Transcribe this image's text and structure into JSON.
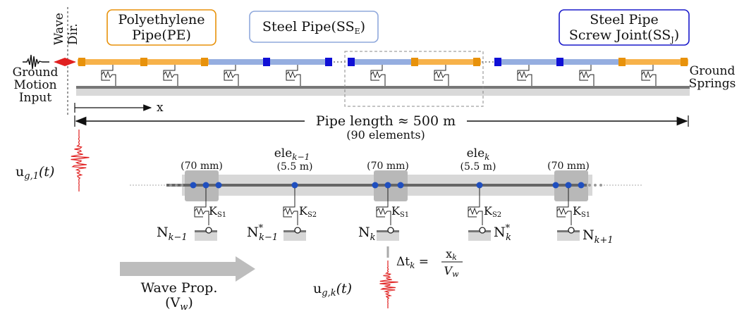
{
  "top": {
    "wave_dir": [
      "Wave",
      "Dir."
    ],
    "ground_motion_input": [
      "Ground",
      "Motion",
      "Input"
    ],
    "ground_springs": [
      "Ground",
      "Springs"
    ],
    "x_label": "x",
    "pipe_length": "Pipe length ≈ 500 m",
    "elements_note": "(90 elements)",
    "legend": {
      "pe": {
        "lines": [
          "Polyethylene",
          "Pipe(PE)"
        ],
        "color": "#e8920b",
        "fill": "#f7b24a"
      },
      "sse": {
        "base": "Steel Pipe(SS",
        "sub": "E",
        "close": ")",
        "color": "#8fa8dc",
        "fill": "#95aee0"
      },
      "ssj": {
        "line1": "Steel Pipe",
        "base": "Screw Joint(SS",
        "sub": "J",
        "close": ")",
        "color": "#1a1acb"
      }
    }
  },
  "detail": {
    "ug1": {
      "base": "u",
      "sub": "g,1",
      "arg": "(t)"
    },
    "ugk": {
      "base": "u",
      "sub": "g,k",
      "arg": "(t)"
    },
    "joint_size": "(70 mm)",
    "ele_km1": {
      "base": "ele",
      "sub": "k−1",
      "len": "(5.5 m)"
    },
    "ele_k": {
      "base": "ele",
      "sub": "k",
      "len": "(5.5 m)"
    },
    "springs": {
      "ks1": {
        "base": "K",
        "sub": "S1"
      },
      "ks2": {
        "base": "K",
        "sub": "S2"
      }
    },
    "nodes": {
      "nkm1": {
        "base": "N",
        "sub": "k−1"
      },
      "nkm1s": {
        "base": "N",
        "sup": "*",
        "sub": "k−1"
      },
      "nk": {
        "base": "N",
        "sub": "k"
      },
      "nks": {
        "base": "N",
        "sup": "*",
        "sub": "k"
      },
      "nkp1": {
        "base": "N",
        "sub": "k+1"
      }
    },
    "delta": {
      "lhs": "Δt",
      "lhs_sub": "k",
      "eq": " = ",
      "num": "x",
      "num_sub": "k",
      "den": "V",
      "den_sub": "w"
    },
    "wave_prop": {
      "line1": "Wave Prop.",
      "line2_base": "(V",
      "line2_sub": "w",
      "line2_close": ")"
    }
  },
  "colors": {
    "pipe_pe": "#f7b24a",
    "pipe_steel": "#95aee0",
    "joint_pe": "#e8920b",
    "joint_ssj": "#1010d6",
    "node_blue": "#1f4fbf",
    "signal_red": "#e02020",
    "ground_dark": "#777777",
    "ground_light": "#d6d6d6"
  }
}
